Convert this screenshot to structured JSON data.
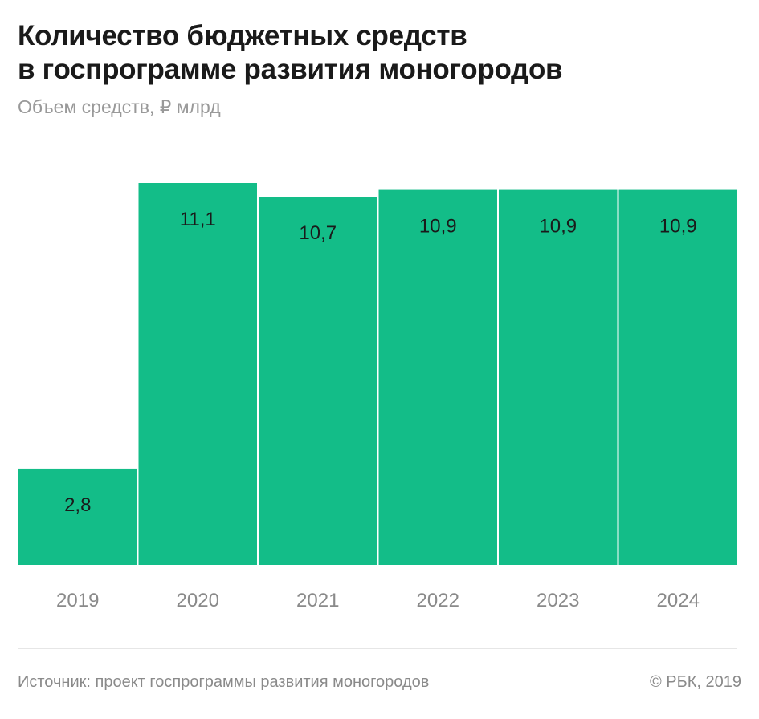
{
  "header": {
    "title_line1": "Количество бюджетных средств",
    "title_line2": "в госпрограмме развития моногородов",
    "subtitle": "Объем средств, ₽ млрд"
  },
  "footer": {
    "source": "Источник: проект госпрограммы развития моногородов",
    "copyright": "© РБК, 2019"
  },
  "chart_data": {
    "type": "bar",
    "title": "Количество бюджетных средств в госпрограмме развития моногородов",
    "ylabel": "Объем средств, ₽ млрд",
    "xlabel": "",
    "categories": [
      "2019",
      "2020",
      "2021",
      "2022",
      "2023",
      "2024"
    ],
    "values": [
      2.8,
      11.1,
      10.7,
      10.9,
      10.9,
      10.9
    ],
    "value_labels": [
      "2,8",
      "11,1",
      "10,7",
      "10,9",
      "10,9",
      "10,9"
    ],
    "ylim": [
      0,
      11.1
    ],
    "grid": false,
    "bar_color": "#13bd88"
  }
}
